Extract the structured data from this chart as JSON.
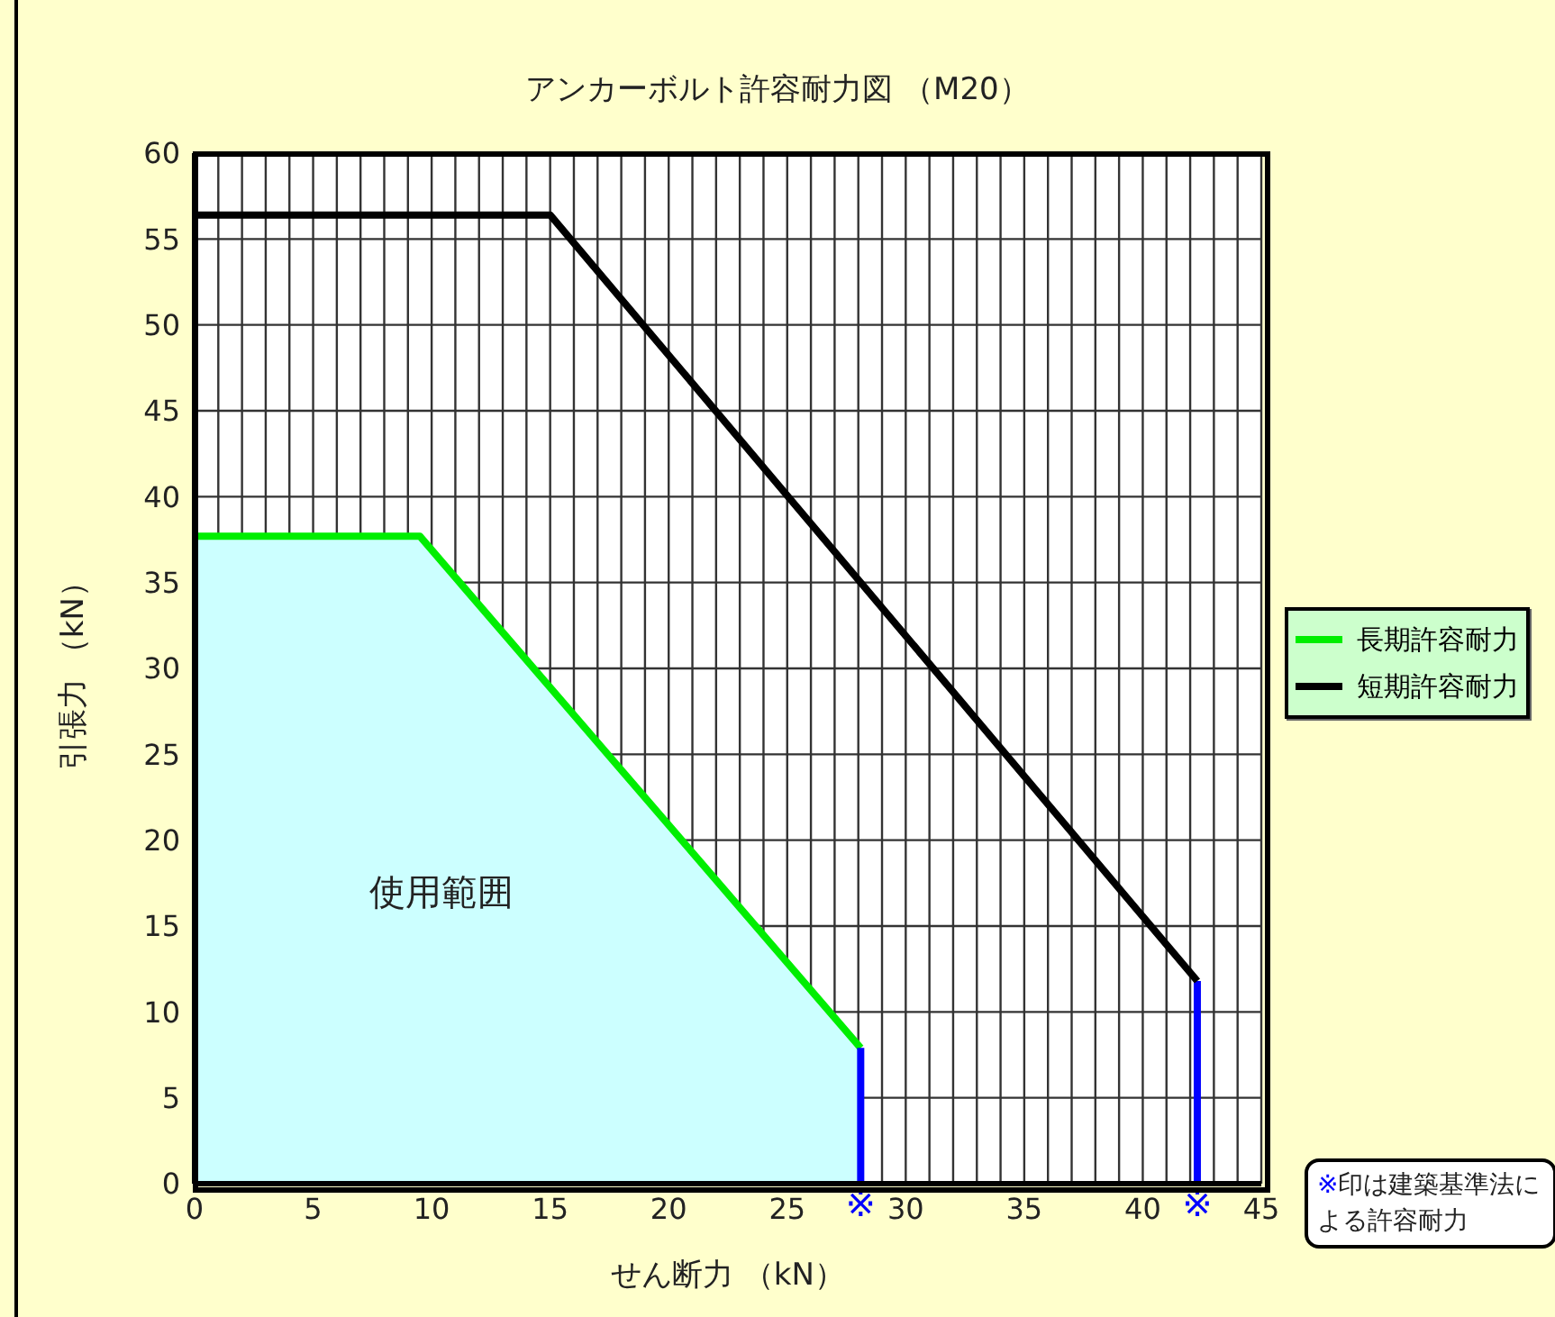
{
  "chart_data": {
    "type": "line",
    "title": "アンカーボルト許容耐力図 （M20）",
    "xlabel": "せん断力 （kN）",
    "ylabel": "引張力 （kN）",
    "xlim": [
      0,
      45
    ],
    "ylim": [
      0,
      60
    ],
    "xticks": [
      0,
      {
        "value": 1,
        "label": null
      },
      {
        "value": 2,
        "label": null
      },
      {
        "value": 3,
        "label": null
      },
      {
        "value": 4,
        "label": null
      },
      5,
      {
        "value": 6,
        "label": null
      },
      {
        "value": 7,
        "label": null
      },
      {
        "value": 8,
        "label": null
      },
      {
        "value": 9,
        "label": null
      },
      10,
      {
        "value": 11,
        "label": null
      },
      {
        "value": 12,
        "label": null
      },
      {
        "value": 13,
        "label": null
      },
      {
        "value": 14,
        "label": null
      },
      15,
      {
        "value": 16,
        "label": null
      },
      {
        "value": 17,
        "label": null
      },
      {
        "value": 18,
        "label": null
      },
      {
        "value": 19,
        "label": null
      },
      20,
      {
        "value": 21,
        "label": null
      },
      {
        "value": 22,
        "label": null
      },
      {
        "value": 23,
        "label": null
      },
      {
        "value": 24,
        "label": null
      },
      25,
      {
        "value": 26,
        "label": null
      },
      {
        "value": 27,
        "label": null
      },
      {
        "value": 28,
        "label": null
      },
      {
        "value": 29,
        "label": null
      },
      30,
      {
        "value": 31,
        "label": null
      },
      {
        "value": 32,
        "label": null
      },
      {
        "value": 33,
        "label": null
      },
      {
        "value": 34,
        "label": null
      },
      35,
      {
        "value": 36,
        "label": null
      },
      {
        "value": 37,
        "label": null
      },
      {
        "value": 38,
        "label": null
      },
      {
        "value": 39,
        "label": null
      },
      40,
      {
        "value": 41,
        "label": null
      },
      {
        "value": 42,
        "label": null
      },
      {
        "value": 43,
        "label": null
      },
      {
        "value": 44,
        "label": null
      },
      45
    ],
    "yticks": [
      0,
      5,
      10,
      15,
      20,
      25,
      30,
      35,
      40,
      45,
      50,
      55,
      60
    ],
    "grid": true,
    "legend": "right",
    "series": [
      {
        "color": "#0000ff",
        "x": [
          28.1,
          28.1
        ],
        "values": [
          0,
          7.9
        ]
      },
      {
        "color": "#0000ff",
        "x": [
          42.3,
          42.3
        ],
        "values": [
          0,
          11.8
        ]
      },
      {
        "name": "長期許容耐力",
        "type": "area",
        "color": "#00ee00",
        "x": [
          0,
          9.5,
          28.1
        ],
        "values": [
          37.7,
          37.7,
          7.9
        ]
      },
      {
        "name": "短期許容耐力",
        "color": "#000000",
        "x": [
          0,
          15,
          42.3
        ],
        "values": [
          56.4,
          56.4,
          11.8
        ]
      }
    ],
    "annotations": [
      "使用範囲",
      {
        "text": "※",
        "x": 28.1,
        "y": 0
      },
      {
        "text": "※",
        "x": 42.3,
        "y": 0
      },
      "※印は建築基準法による許容耐力"
    ]
  }
}
